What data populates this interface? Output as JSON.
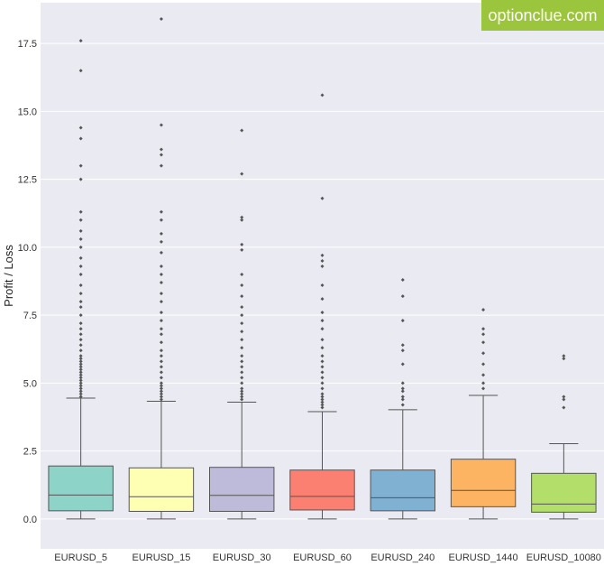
{
  "watermark": {
    "text": "optionclue.com",
    "color": "#9BC53D"
  },
  "colors": {
    "plot_background": "#EAEAF2",
    "grid": "#FFFFFF",
    "whisker": "#555555",
    "outlier": "#555555"
  },
  "chart_data": {
    "type": "box",
    "title": "",
    "xlabel": "",
    "ylabel": "Profit / Loss",
    "ylim": [
      -1.1,
      19.0
    ],
    "yticks": [
      0.0,
      2.5,
      5.0,
      7.5,
      10.0,
      12.5,
      15.0,
      17.5
    ],
    "ytick_labels": [
      "0.0",
      "2.5",
      "5.0",
      "7.5",
      "10.0",
      "12.5",
      "15.0",
      "17.5"
    ],
    "grid": true,
    "categories": [
      "EURUSD_5",
      "EURUSD_15",
      "EURUSD_30",
      "EURUSD_60",
      "EURUSD_240",
      "EURUSD_1440",
      "EURUSD_10080"
    ],
    "boxes": [
      {
        "name": "EURUSD_5",
        "color": "#8DD3C7",
        "min": 0.0,
        "q1": 0.3,
        "median": 0.88,
        "q3": 1.95,
        "max": 4.45,
        "outliers": [
          4.5,
          4.6,
          4.7,
          4.8,
          4.9,
          5.0,
          5.1,
          5.2,
          5.3,
          5.4,
          5.5,
          5.6,
          5.7,
          5.8,
          5.9,
          6.0,
          6.2,
          6.4,
          6.6,
          6.8,
          7.0,
          7.2,
          7.5,
          7.8,
          8.0,
          8.3,
          8.6,
          9.0,
          9.3,
          9.6,
          10.0,
          10.3,
          10.6,
          11.0,
          11.3,
          12.5,
          13.0,
          14.0,
          14.4,
          16.5,
          17.6
        ]
      },
      {
        "name": "EURUSD_15",
        "color": "#FFFFB3",
        "min": 0.0,
        "q1": 0.28,
        "median": 0.82,
        "q3": 1.88,
        "max": 4.33,
        "outliers": [
          4.4,
          4.5,
          4.6,
          4.7,
          4.8,
          4.9,
          5.0,
          5.2,
          5.4,
          5.6,
          5.8,
          6.0,
          6.2,
          6.5,
          6.8,
          7.0,
          7.3,
          7.6,
          8.0,
          8.3,
          8.7,
          9.0,
          9.3,
          9.8,
          10.2,
          10.5,
          11.0,
          11.3,
          13.0,
          13.4,
          13.6,
          14.5,
          18.4
        ]
      },
      {
        "name": "EURUSD_30",
        "color": "#BEBADA",
        "min": 0.0,
        "q1": 0.28,
        "median": 0.87,
        "q3": 1.9,
        "max": 4.3,
        "outliers": [
          4.4,
          4.5,
          4.6,
          4.7,
          4.8,
          5.0,
          5.2,
          5.4,
          5.6,
          5.8,
          6.0,
          6.3,
          6.6,
          6.9,
          7.2,
          7.5,
          7.8,
          8.2,
          8.6,
          9.0,
          9.9,
          10.1,
          11.0,
          11.1,
          12.7,
          14.3
        ]
      },
      {
        "name": "EURUSD_60",
        "color": "#FB8072",
        "min": 0.0,
        "q1": 0.33,
        "median": 0.83,
        "q3": 1.8,
        "max": 3.95,
        "outliers": [
          4.1,
          4.2,
          4.3,
          4.4,
          4.5,
          4.6,
          4.8,
          5.0,
          5.2,
          5.4,
          5.6,
          5.8,
          6.0,
          6.3,
          6.6,
          7.0,
          7.3,
          7.6,
          8.1,
          8.6,
          9.3,
          9.5,
          9.7,
          11.8,
          15.6
        ]
      },
      {
        "name": "EURUSD_240",
        "color": "#80B1D3",
        "min": 0.0,
        "q1": 0.3,
        "median": 0.78,
        "q3": 1.8,
        "max": 4.02,
        "outliers": [
          4.2,
          4.4,
          4.5,
          4.7,
          4.8,
          5.0,
          5.7,
          6.2,
          6.4,
          7.3,
          8.2,
          8.8
        ]
      },
      {
        "name": "EURUSD_1440",
        "color": "#FDB462",
        "min": 0.0,
        "q1": 0.45,
        "median": 1.05,
        "q3": 2.2,
        "max": 4.55,
        "outliers": [
          4.8,
          5.0,
          5.3,
          5.7,
          6.1,
          6.5,
          6.8,
          7.0,
          7.7
        ]
      },
      {
        "name": "EURUSD_10080",
        "color": "#B3DE69",
        "min": 0.0,
        "q1": 0.25,
        "median": 0.55,
        "q3": 1.68,
        "max": 2.77,
        "outliers": [
          4.1,
          4.4,
          4.5,
          5.9,
          6.0
        ]
      }
    ]
  }
}
